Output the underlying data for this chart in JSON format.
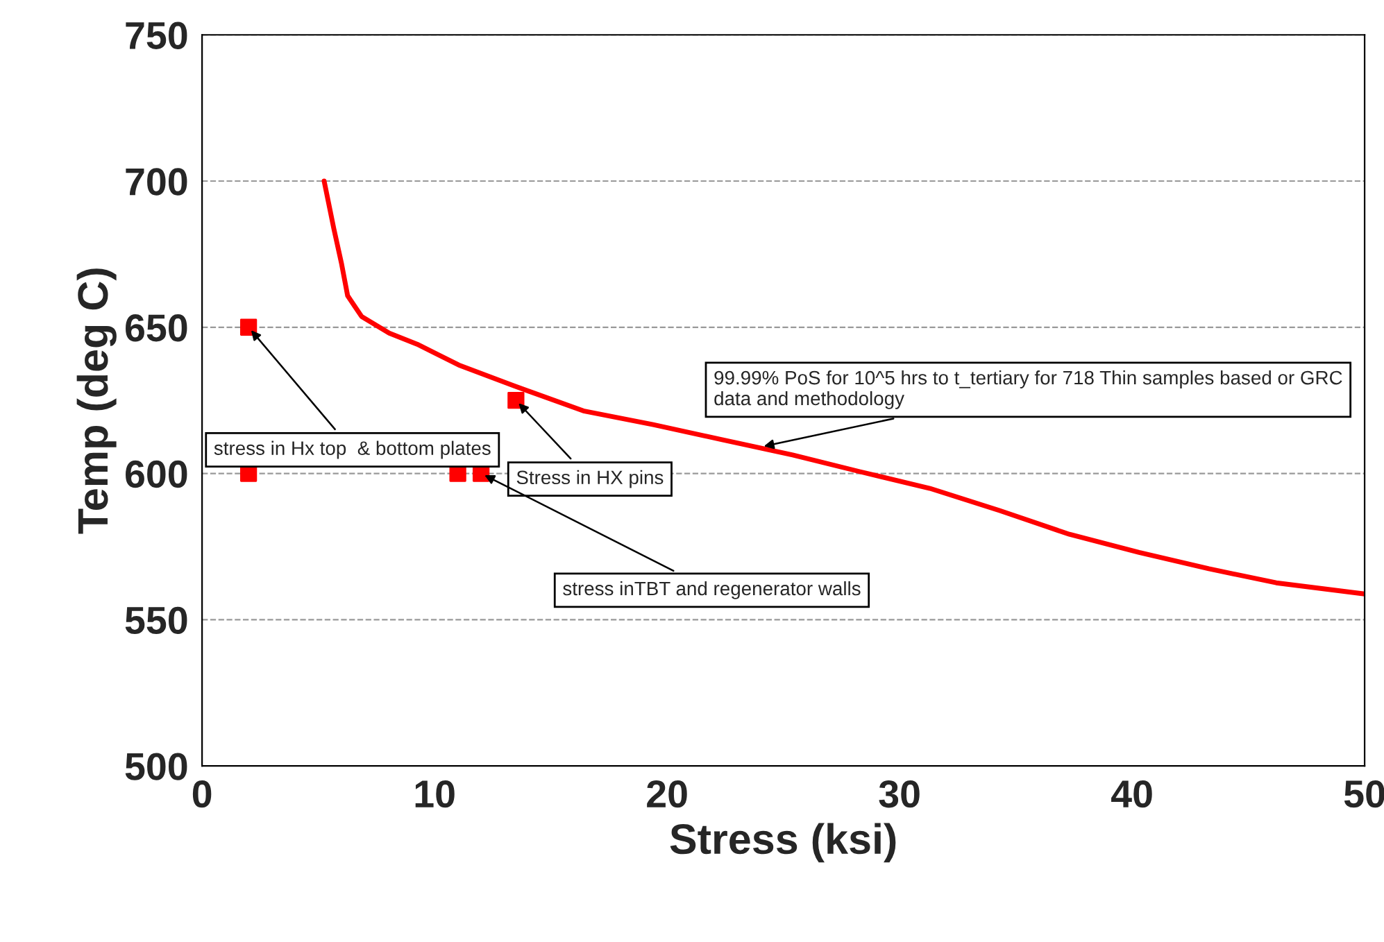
{
  "chart_data": {
    "type": "line",
    "xlabel": "Stress (ksi)",
    "ylabel": "Temp (deg C)",
    "xlim": [
      0,
      50
    ],
    "ylim": [
      500,
      750
    ],
    "xticks": [
      0,
      10,
      20,
      30,
      40,
      50
    ],
    "yticks": [
      500,
      550,
      600,
      650,
      700,
      750
    ],
    "grid": "y",
    "series": [
      {
        "color": "#ff0000",
        "marker": "none",
        "x": [
          5.25,
          5.67,
          6.0,
          6.26,
          6.86,
          8.05,
          9.25,
          11.04,
          13.4,
          16.4,
          19.4,
          22.4,
          25.4,
          28.3,
          31.3,
          34.3,
          37.3,
          40.3,
          43.3,
          46.2,
          50
        ],
        "values": [
          700,
          683.6,
          671.7,
          660.8,
          653.7,
          648,
          644.2,
          637.1,
          630,
          621.4,
          616.7,
          611.5,
          606.3,
          600.6,
          594.9,
          587.3,
          579.2,
          573,
          567.4,
          562.6,
          558.8
        ]
      },
      {
        "type": "scatter",
        "color": "#ff0000",
        "marker": "square",
        "x": [
          2,
          2,
          11,
          12,
          13.5
        ],
        "values": [
          650,
          600,
          600,
          600,
          625
        ]
      }
    ],
    "annotations": [
      {
        "text": "stress in Hx top  & bottom plates",
        "x": 2,
        "y": 650
      },
      {
        "text": "Stress in HX pins",
        "x": 13.5,
        "y": 625
      },
      {
        "text": "stress inTBT and regenerator walls",
        "x": 12,
        "y": 600
      },
      {
        "text": "99.99% PoS for 10^5 hrs to t_tertiary for 718 Thin samples based or GRC data and methodology",
        "x": 24,
        "y": 609
      }
    ]
  }
}
